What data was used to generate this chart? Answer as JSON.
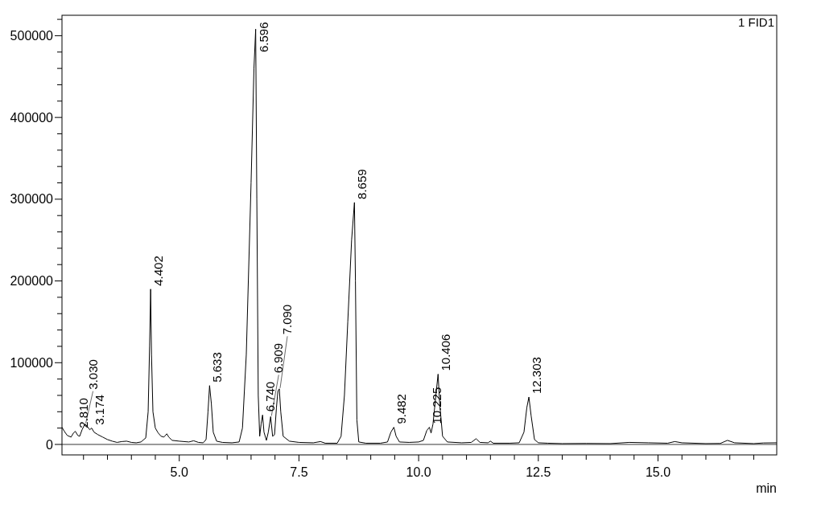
{
  "chart_data": {
    "type": "line",
    "xlabel": "min",
    "xlim": [
      2.55,
      17.48
    ],
    "xticks": [
      {
        "value": 3,
        "label": null
      },
      {
        "value": 3.5,
        "label": null
      },
      {
        "value": 4,
        "label": null
      },
      {
        "value": 4.5,
        "label": null
      },
      {
        "value": 5,
        "label": "5.0"
      },
      {
        "value": 5.5,
        "label": null
      },
      {
        "value": 6,
        "label": null
      },
      {
        "value": 6.5,
        "label": null
      },
      {
        "value": 7,
        "label": null
      },
      {
        "value": 7.5,
        "label": "7.5"
      },
      {
        "value": 8,
        "label": null
      },
      {
        "value": 8.5,
        "label": null
      },
      {
        "value": 9,
        "label": null
      },
      {
        "value": 9.5,
        "label": null
      },
      {
        "value": 10,
        "label": "10.0"
      },
      {
        "value": 10.5,
        "label": null
      },
      {
        "value": 11,
        "label": null
      },
      {
        "value": 11.5,
        "label": null
      },
      {
        "value": 12,
        "label": null
      },
      {
        "value": 12.5,
        "label": "12.5"
      },
      {
        "value": 13,
        "label": null
      },
      {
        "value": 13.5,
        "label": null
      },
      {
        "value": 14,
        "label": null
      },
      {
        "value": 14.5,
        "label": null
      },
      {
        "value": 15,
        "label": "15.0"
      },
      {
        "value": 15.5,
        "label": null
      },
      {
        "value": 16,
        "label": null
      },
      {
        "value": 16.5,
        "label": null
      },
      {
        "value": 17,
        "label": null
      }
    ],
    "ylim": [
      -12800,
      525000
    ],
    "yticks": [
      0,
      {
        "value": 20000,
        "label": null
      },
      {
        "value": 40000,
        "label": null
      },
      {
        "value": 60000,
        "label": null
      },
      {
        "value": 80000,
        "label": null
      },
      100000,
      {
        "value": 120000,
        "label": null
      },
      {
        "value": 140000,
        "label": null
      },
      {
        "value": 160000,
        "label": null
      },
      {
        "value": 180000,
        "label": null
      },
      200000,
      {
        "value": 220000,
        "label": null
      },
      {
        "value": 240000,
        "label": null
      },
      {
        "value": 260000,
        "label": null
      },
      {
        "value": 280000,
        "label": null
      },
      300000,
      {
        "value": 320000,
        "label": null
      },
      {
        "value": 340000,
        "label": null
      },
      {
        "value": 360000,
        "label": null
      },
      {
        "value": 380000,
        "label": null
      },
      400000,
      {
        "value": 420000,
        "label": null
      },
      {
        "value": 440000,
        "label": null
      },
      {
        "value": 460000,
        "label": null
      },
      {
        "value": 480000,
        "label": null
      },
      500000,
      {
        "value": 520000,
        "label": null
      }
    ],
    "grid": false,
    "marker": "none",
    "line_style": "solid",
    "ref_lines": [
      {
        "axis": "y",
        "value": 0,
        "color": "#000000"
      }
    ],
    "series": [
      {
        "color": "#000000",
        "x": [
          2.55,
          2.6,
          2.66,
          2.74,
          2.79,
          2.83,
          2.88,
          2.92,
          2.97,
          3.03,
          3.08,
          3.13,
          3.17,
          3.22,
          3.3,
          3.4,
          3.5,
          3.6,
          3.7,
          3.8,
          3.9,
          4.0,
          4.1,
          4.2,
          4.3,
          4.35,
          4.38,
          4.402,
          4.42,
          4.45,
          4.5,
          4.56,
          4.62,
          4.68,
          4.74,
          4.78,
          4.85,
          5.0,
          5.2,
          5.3,
          5.4,
          5.5,
          5.56,
          5.6,
          5.633,
          5.67,
          5.71,
          5.78,
          5.9,
          6.1,
          6.25,
          6.32,
          6.4,
          6.5,
          6.56,
          6.596,
          6.62,
          6.65,
          6.68,
          6.71,
          6.74,
          6.77,
          6.82,
          6.86,
          6.909,
          6.95,
          6.99,
          7.03,
          7.06,
          7.09,
          7.12,
          7.17,
          7.3,
          7.5,
          7.8,
          7.95,
          8.05,
          8.3,
          8.38,
          8.45,
          8.52,
          8.6,
          8.659,
          8.68,
          8.71,
          8.75,
          8.9,
          9.2,
          9.35,
          9.42,
          9.482,
          9.53,
          9.6,
          9.8,
          10.0,
          10.1,
          10.17,
          10.225,
          10.26,
          10.3,
          10.36,
          10.406,
          10.44,
          10.5,
          10.6,
          10.9,
          11.1,
          11.2,
          11.28,
          11.45,
          11.5,
          11.56,
          11.9,
          12.1,
          12.2,
          12.26,
          12.303,
          12.35,
          12.42,
          12.5,
          12.7,
          13.0,
          13.5,
          14.0,
          14.4,
          14.8,
          15.2,
          15.35,
          15.5,
          16.0,
          16.3,
          16.45,
          16.6,
          17.0,
          17.2,
          17.48
        ],
        "values": [
          21000,
          16000,
          11000,
          9000,
          14000,
          16000,
          11000,
          10000,
          18000,
          25000,
          22000,
          18000,
          20000,
          15000,
          12000,
          9000,
          6000,
          4000,
          2500,
          3500,
          4000,
          2500,
          2000,
          3000,
          8000,
          40000,
          120000,
          190000,
          110000,
          40000,
          20000,
          14000,
          10000,
          9000,
          13000,
          9000,
          5000,
          4000,
          3000,
          4500,
          2500,
          2000,
          6000,
          40000,
          72000,
          50000,
          15000,
          4000,
          2500,
          2000,
          3000,
          20000,
          110000,
          320000,
          460000,
          508000,
          300000,
          60000,
          10000,
          25000,
          36000,
          15000,
          5000,
          15000,
          34000,
          10000,
          12000,
          45000,
          65000,
          68000,
          40000,
          10000,
          4000,
          2500,
          2000,
          3500,
          1500,
          1500,
          10000,
          60000,
          150000,
          250000,
          296000,
          200000,
          30000,
          3000,
          1500,
          1500,
          3000,
          15000,
          21000,
          10000,
          3000,
          2500,
          3000,
          5000,
          17000,
          21000,
          14000,
          25000,
          60000,
          86000,
          50000,
          10000,
          3000,
          2000,
          2500,
          7000,
          2500,
          2000,
          4000,
          1500,
          1500,
          2000,
          15000,
          45000,
          58000,
          35000,
          6000,
          2000,
          1500,
          1000,
          1200,
          1000,
          2500,
          2000,
          1500,
          3500,
          2000,
          1000,
          1200,
          5000,
          2000,
          1000,
          1800,
          2000
        ]
      }
    ],
    "annotations": [
      "1 FID1",
      {
        "text": "2.810",
        "x": 2.83,
        "y": 16000
      },
      {
        "text": "3.030",
        "x": 3.03,
        "y": 25000
      },
      {
        "text": "3.174",
        "x": 3.17,
        "y": 20000
      },
      {
        "text": "4.402",
        "x": 4.402,
        "y": 190000
      },
      {
        "text": "5.633",
        "x": 5.633,
        "y": 72000
      },
      {
        "text": "6.596",
        "x": 6.596,
        "y": 508000
      },
      {
        "text": "6.740",
        "x": 6.74,
        "y": 36000
      },
      {
        "text": "6.909",
        "x": 6.909,
        "y": 34000
      },
      {
        "text": "7.090",
        "x": 7.09,
        "y": 68000
      },
      {
        "text": "8.659",
        "x": 8.659,
        "y": 296000
      },
      {
        "text": "9.482",
        "x": 9.482,
        "y": 21000
      },
      {
        "text": "10.225",
        "x": 10.225,
        "y": 21000
      },
      {
        "text": "10.406",
        "x": 10.406,
        "y": 86000
      },
      {
        "text": "12.303",
        "x": 12.303,
        "y": 58000
      }
    ]
  }
}
